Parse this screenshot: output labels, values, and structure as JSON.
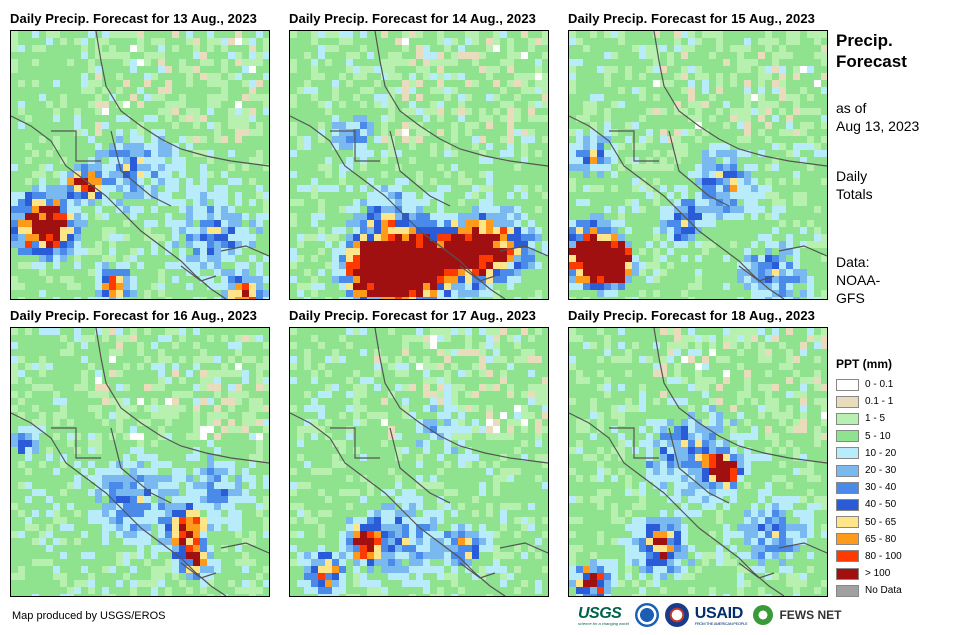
{
  "panels": [
    {
      "title": "Daily Precip. Forecast for 13 Aug., 2023",
      "day": "13 Aug., 2023"
    },
    {
      "title": "Daily Precip. Forecast for 14 Aug., 2023",
      "day": "14 Aug., 2023"
    },
    {
      "title": "Daily Precip. Forecast for 15 Aug., 2023",
      "day": "15 Aug., 2023"
    },
    {
      "title": "Daily Precip. Forecast for 16 Aug., 2023",
      "day": "16 Aug., 2023"
    },
    {
      "title": "Daily Precip. Forecast for 17 Aug., 2023",
      "day": "17 Aug., 2023"
    },
    {
      "title": "Daily Precip. Forecast for 18 Aug., 2023",
      "day": "18 Aug., 2023"
    }
  ],
  "sidebar": {
    "title": "Precip. Forecast",
    "as_of_label": "as of",
    "as_of_date": "Aug 13, 2023",
    "totals_label": "Daily Totals",
    "data_label": "Data:",
    "data_source": "NOAA-GFS"
  },
  "legend": {
    "title": "PPT (mm)",
    "items": [
      {
        "label": "0 - 0.1",
        "color": "#ffffff"
      },
      {
        "label": "0.1 - 1",
        "color": "#e8dcbc"
      },
      {
        "label": "1 - 5",
        "color": "#b8f0b0"
      },
      {
        "label": "5 - 10",
        "color": "#8fe38f"
      },
      {
        "label": "10 - 20",
        "color": "#b8ecfa"
      },
      {
        "label": "20 - 30",
        "color": "#7ab8f0"
      },
      {
        "label": "30 - 40",
        "color": "#4a8ae8"
      },
      {
        "label": "40 - 50",
        "color": "#2a5cd8"
      },
      {
        "label": "50 - 65",
        "color": "#ffe58a"
      },
      {
        "label": "65 - 80",
        "color": "#ff9a1a"
      },
      {
        "label": "80 - 100",
        "color": "#ff3a00"
      },
      {
        "label": "> 100",
        "color": "#a01010"
      },
      {
        "label": "No Data",
        "color": "#a0a0a0"
      }
    ]
  },
  "credit": "Map produced by USGS/EROS",
  "logos": {
    "usgs": "USGS",
    "usgs_tagline": "science for a changing world",
    "usaid": "USAID",
    "usaid_tagline": "FROM THE AMERICAN PEOPLE",
    "fews": "FEWS NET"
  }
}
